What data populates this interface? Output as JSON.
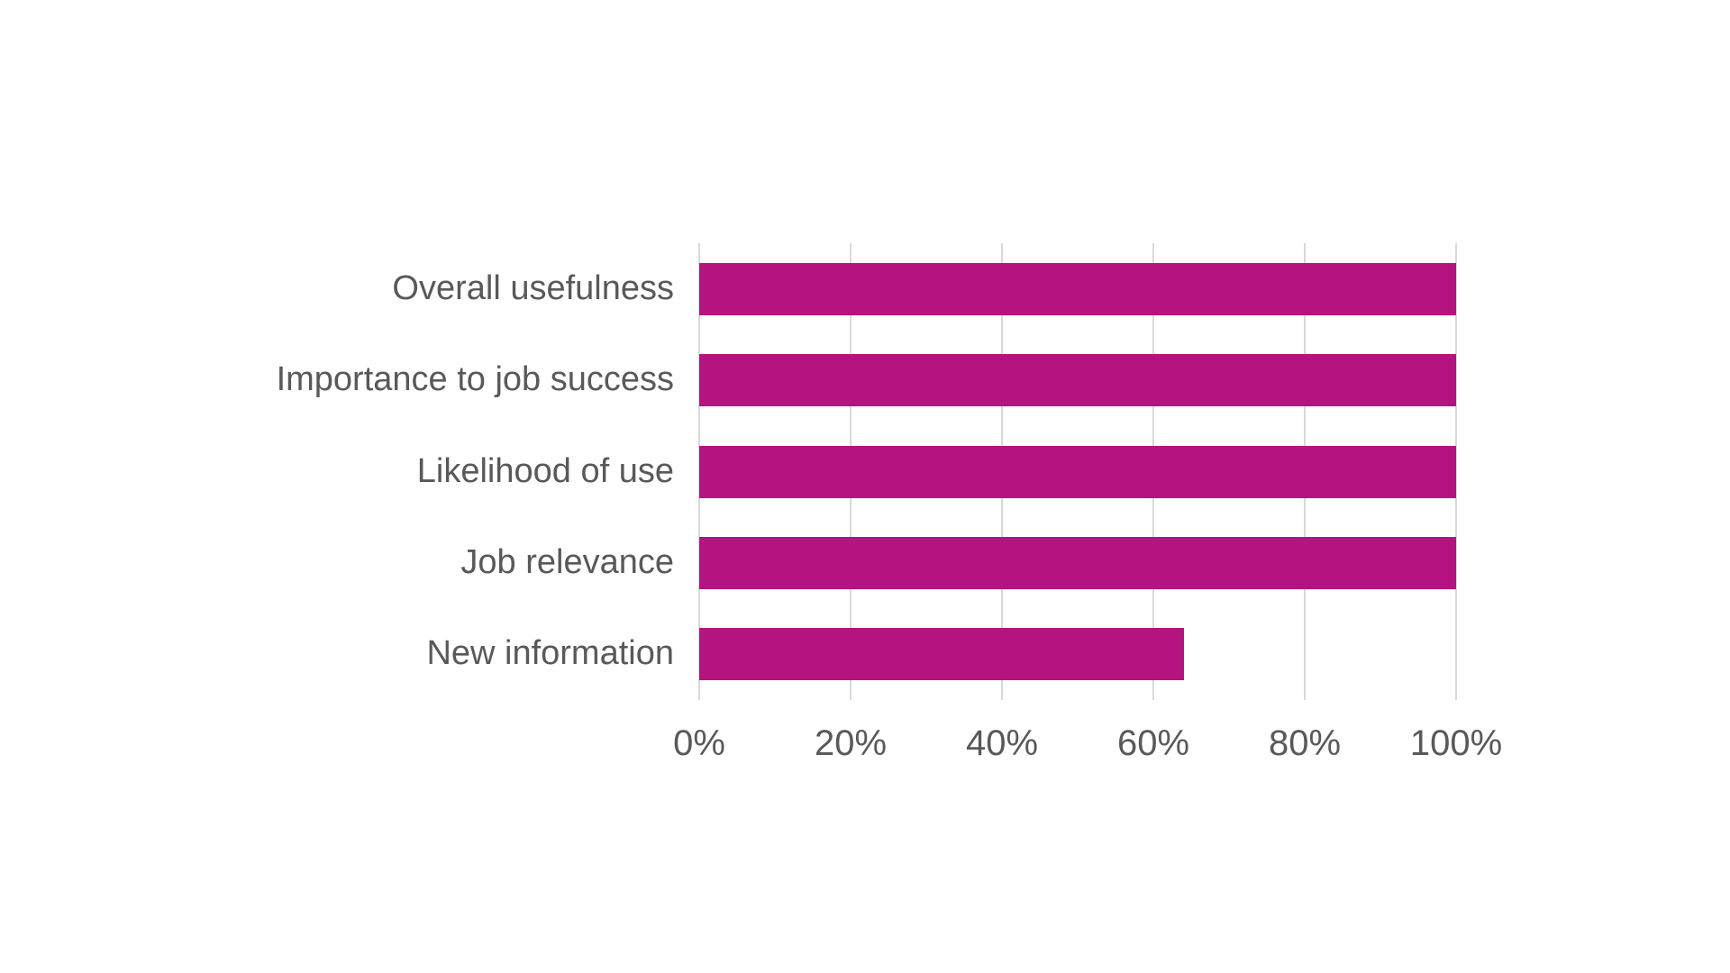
{
  "chart_data": {
    "type": "bar",
    "orientation": "horizontal",
    "title": "",
    "categories": [
      "Overall usefulness",
      "Importance to job success",
      "Likelihood of use",
      "Job relevance",
      "New information"
    ],
    "values": [
      100,
      100,
      100,
      100,
      64
    ],
    "value_suffix": "%",
    "x_ticks": [
      "0%",
      "20%",
      "40%",
      "60%",
      "80%",
      "100%"
    ],
    "x_tick_values": [
      0,
      20,
      40,
      60,
      80,
      100
    ],
    "xlim": [
      0,
      100
    ],
    "xlabel": "",
    "ylabel": "",
    "grid": true,
    "legend": false,
    "bar_color": "#B5137F",
    "label_color": "#595959",
    "gridline_color": "#D9D9D9",
    "background_color": "#FFFFFF"
  }
}
